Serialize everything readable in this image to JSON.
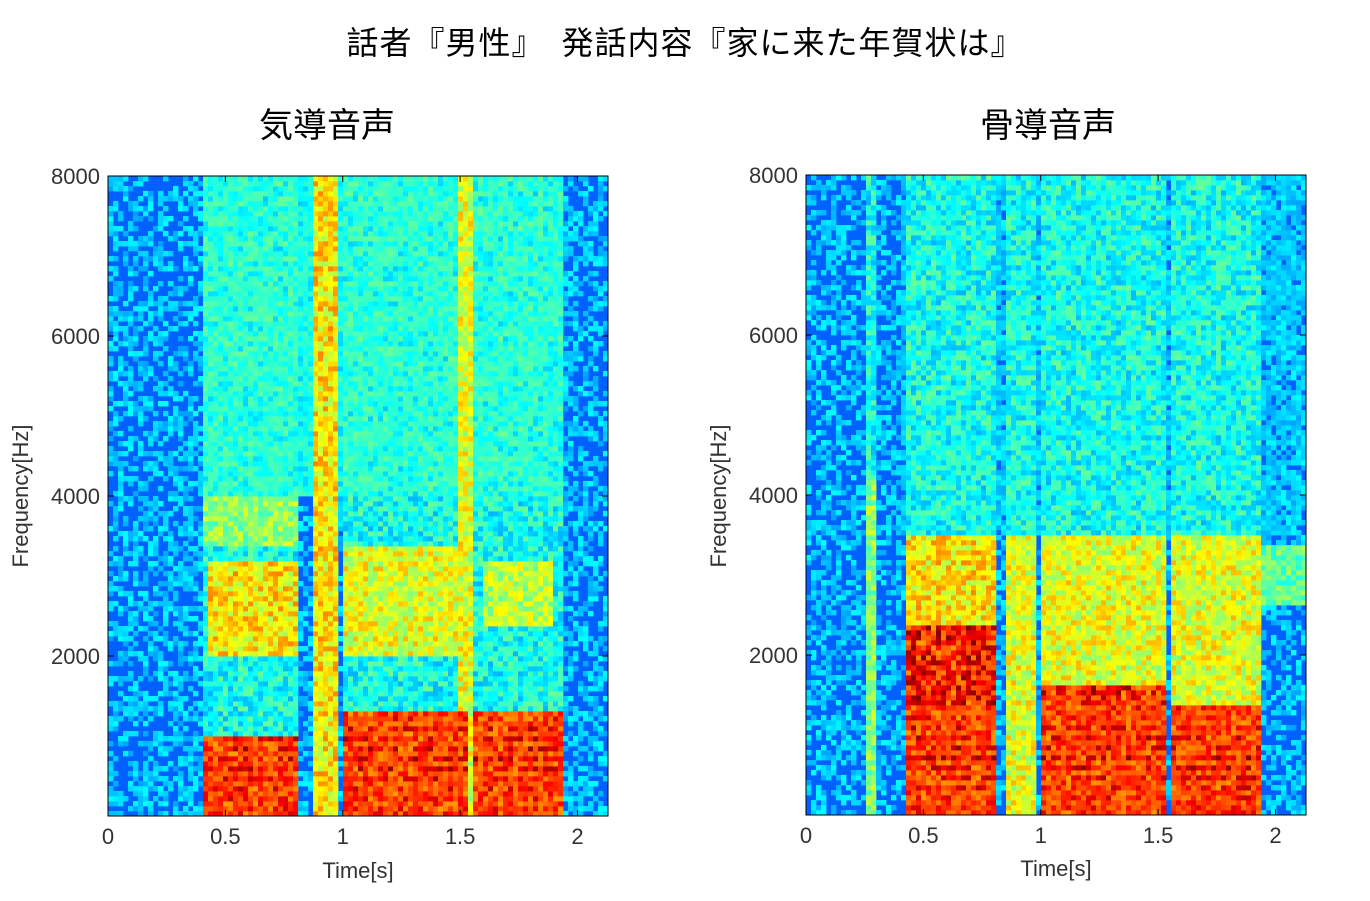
{
  "title": "話者『男性』　発話内容『家に来た年賀状は』",
  "chart_data": [
    {
      "type": "heatmap",
      "subtype": "spectrogram",
      "title": "気導音声",
      "xlabel": "Time[s]",
      "ylabel": "Frequency[Hz]",
      "xlim": [
        0,
        2.13
      ],
      "ylim": [
        0,
        8000
      ],
      "xticks": [
        0,
        0.5,
        1,
        1.5,
        2
      ],
      "xtick_labels": [
        "0",
        "0.5",
        "1",
        "1.5",
        "2"
      ],
      "yticks": [
        2000,
        4000,
        6000,
        8000
      ],
      "ytick_labels": [
        "2000",
        "4000",
        "6000",
        "8000"
      ],
      "colormap": "jet",
      "speech_segments_s": [
        [
          0.4,
          0.82
        ],
        [
          0.88,
          0.97
        ],
        [
          1.0,
          1.53
        ],
        [
          1.56,
          1.93
        ]
      ],
      "high_energy_segments": [
        {
          "t0": 0.4,
          "t1": 0.82,
          "f0": 0,
          "f1": 1000,
          "level": 1.0
        },
        {
          "t0": 0.42,
          "t1": 0.8,
          "f0": 2000,
          "f1": 3200,
          "level": 0.75
        },
        {
          "t0": 0.4,
          "t1": 0.82,
          "f0": 3400,
          "f1": 4000,
          "level": 0.6
        },
        {
          "t0": 0.88,
          "t1": 0.97,
          "f0": 0,
          "f1": 8000,
          "level": 0.75
        },
        {
          "t0": 1.0,
          "t1": 1.53,
          "f0": 0,
          "f1": 1300,
          "level": 1.0
        },
        {
          "t0": 1.0,
          "t1": 1.5,
          "f0": 2000,
          "f1": 3400,
          "level": 0.7
        },
        {
          "t0": 1.5,
          "t1": 1.56,
          "f0": 0,
          "f1": 8000,
          "level": 0.7
        },
        {
          "t0": 1.56,
          "t1": 1.93,
          "f0": 0,
          "f1": 1300,
          "level": 1.0
        },
        {
          "t0": 1.6,
          "t1": 1.9,
          "f0": 2400,
          "f1": 3200,
          "level": 0.65
        },
        {
          "t0": 0.4,
          "t1": 1.93,
          "f0": 4000,
          "f1": 8000,
          "level": 0.45
        }
      ]
    },
    {
      "type": "heatmap",
      "subtype": "spectrogram",
      "title": "骨導音声",
      "xlabel": "Time[s]",
      "ylabel": "Frequency[Hz]",
      "xlim": [
        0,
        2.13
      ],
      "ylim": [
        0,
        8000
      ],
      "xticks": [
        0,
        0.5,
        1,
        1.5,
        2
      ],
      "xtick_labels": [
        "0",
        "0.5",
        "1",
        "1.5",
        "2"
      ],
      "yticks": [
        2000,
        4000,
        6000,
        8000
      ],
      "ytick_labels": [
        "2000",
        "4000",
        "6000",
        "8000"
      ],
      "colormap": "jet",
      "speech_segments_s": [
        [
          0.25,
          0.3
        ],
        [
          0.42,
          0.82
        ],
        [
          0.85,
          0.97
        ],
        [
          1.0,
          1.53
        ],
        [
          1.56,
          1.93
        ]
      ],
      "high_energy_segments": [
        {
          "t0": 0.42,
          "t1": 0.82,
          "f0": 0,
          "f1": 2400,
          "level": 1.0
        },
        {
          "t0": 0.42,
          "t1": 0.82,
          "f0": 2400,
          "f1": 3500,
          "level": 0.75
        },
        {
          "t0": 0.85,
          "t1": 0.97,
          "f0": 0,
          "f1": 3500,
          "level": 0.7
        },
        {
          "t0": 1.0,
          "t1": 1.53,
          "f0": 0,
          "f1": 1600,
          "level": 1.0
        },
        {
          "t0": 1.0,
          "t1": 1.53,
          "f0": 1600,
          "f1": 3500,
          "level": 0.7
        },
        {
          "t0": 1.56,
          "t1": 1.93,
          "f0": 0,
          "f1": 1400,
          "level": 1.0
        },
        {
          "t0": 1.56,
          "t1": 1.93,
          "f0": 1400,
          "f1": 3500,
          "level": 0.7
        },
        {
          "t0": 1.93,
          "t1": 2.13,
          "f0": 2600,
          "f1": 3400,
          "level": 0.55
        },
        {
          "t0": 0.25,
          "t1": 0.3,
          "f0": 0,
          "f1": 4200,
          "level": 0.6
        },
        {
          "t0": 0.4,
          "t1": 2.13,
          "f0": 3500,
          "f1": 8000,
          "level": 0.35
        }
      ]
    }
  ]
}
